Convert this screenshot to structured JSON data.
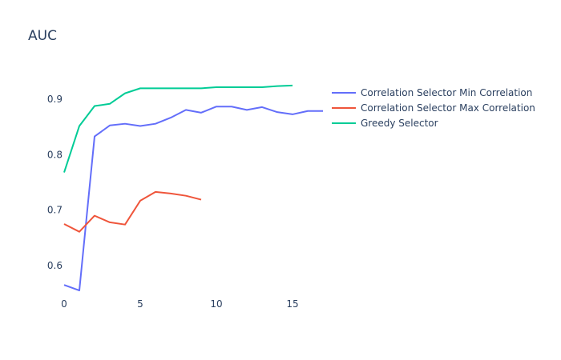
{
  "chart_data": {
    "type": "line",
    "title": "AUC",
    "xlabel": "",
    "ylabel": "",
    "xlim": [
      0,
      17
    ],
    "ylim": [
      0.545,
      0.935
    ],
    "xticks": [
      0,
      5,
      10,
      15
    ],
    "yticks": [
      0.6,
      0.7,
      0.8,
      0.9
    ],
    "grid": false,
    "legend_position": "right",
    "series": [
      {
        "name": "Correlation Selector Min Correlation",
        "color": "#636efa",
        "x": [
          0,
          1,
          2,
          3,
          4,
          5,
          6,
          7,
          8,
          9,
          10,
          11,
          12,
          13,
          14,
          15,
          16,
          17
        ],
        "y": [
          0.565,
          0.555,
          0.833,
          0.853,
          0.856,
          0.852,
          0.856,
          0.867,
          0.881,
          0.876,
          0.887,
          0.887,
          0.881,
          0.886,
          0.877,
          0.873,
          0.879,
          0.879
        ]
      },
      {
        "name": "Correlation Selector Max Correlation",
        "color": "#ef553b",
        "x": [
          0,
          1,
          2,
          3,
          4,
          5,
          6,
          7,
          8,
          9
        ],
        "y": [
          0.675,
          0.661,
          0.69,
          0.678,
          0.674,
          0.717,
          0.733,
          0.73,
          0.726,
          0.719
        ]
      },
      {
        "name": "Greedy Selector",
        "color": "#00cc96",
        "x": [
          0,
          1,
          2,
          3,
          4,
          5,
          6,
          7,
          8,
          9,
          10,
          11,
          12,
          13,
          14,
          15
        ],
        "y": [
          0.768,
          0.852,
          0.888,
          0.892,
          0.911,
          0.92,
          0.92,
          0.92,
          0.92,
          0.92,
          0.922,
          0.922,
          0.922,
          0.922,
          0.924,
          0.925
        ]
      }
    ]
  }
}
